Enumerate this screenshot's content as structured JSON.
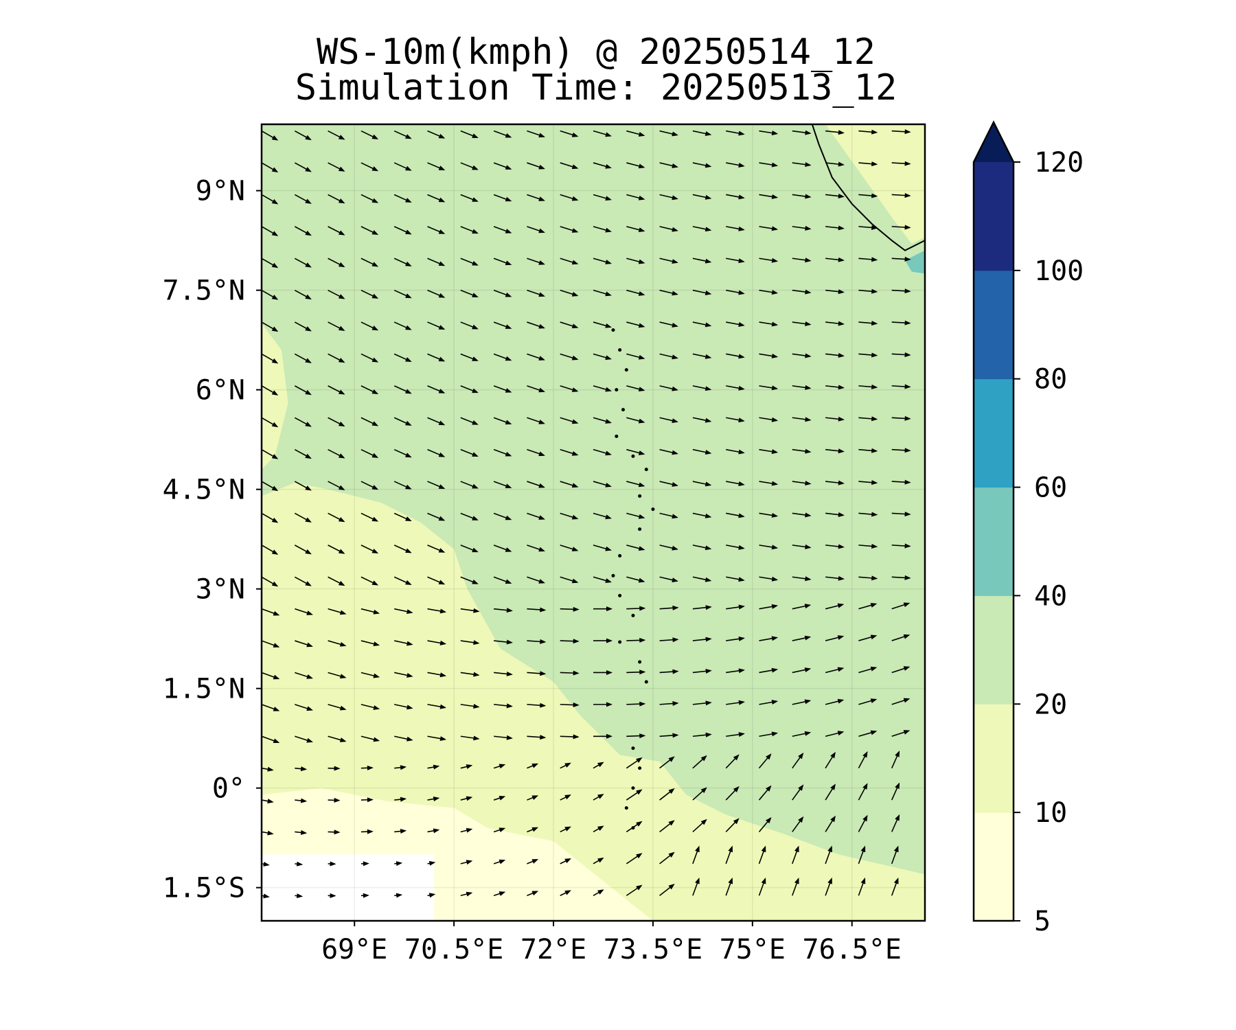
{
  "title": {
    "line1": "WS-10m(kmph) @ 20250514_12",
    "line2": "Simulation Time: 20250513_12"
  },
  "chart_data": {
    "type": "heatmap",
    "variable": "WS-10m(kmph)",
    "valid_time": "20250514_12",
    "simulation_time": "20250513_12",
    "xlim": [
      67.6,
      77.6
    ],
    "ylim": [
      -2.0,
      10.0
    ],
    "x_ticks": [
      {
        "value": 69.0,
        "label": "69°E"
      },
      {
        "value": 70.5,
        "label": "70.5°E"
      },
      {
        "value": 72.0,
        "label": "72°E"
      },
      {
        "value": 73.5,
        "label": "73.5°E"
      },
      {
        "value": 75.0,
        "label": "75°E"
      },
      {
        "value": 76.5,
        "label": "76.5°E"
      }
    ],
    "y_ticks": [
      {
        "value": 9.0,
        "label": "9°N"
      },
      {
        "value": 7.5,
        "label": "7.5°N"
      },
      {
        "value": 6.0,
        "label": "6°N"
      },
      {
        "value": 4.5,
        "label": "4.5°N"
      },
      {
        "value": 3.0,
        "label": "3°N"
      },
      {
        "value": 1.5,
        "label": "1.5°N"
      },
      {
        "value": 0.0,
        "label": "0°"
      },
      {
        "value": -1.5,
        "label": "1.5°S"
      }
    ],
    "grid": true,
    "colorbar": {
      "placement": "right",
      "extend": "max",
      "levels": [
        5,
        10,
        20,
        40,
        60,
        80,
        100,
        120
      ],
      "tick_labels": [
        "5",
        "10",
        "20",
        "40",
        "60",
        "80",
        "100",
        "120"
      ],
      "colors": [
        "#ffffd9",
        "#eef8b8",
        "#c9e9b5",
        "#78c8bc",
        "#2fa2c3",
        "#2363a9",
        "#1c2b7e"
      ],
      "extend_color": "#081d58"
    },
    "regions": [
      {
        "range": "5-10",
        "description": "southwest corner near 1.5°S, west of 71°E"
      },
      {
        "range": "10-20",
        "description": "western and southern part of domain"
      },
      {
        "range": "20-40",
        "description": "most of domain, north and east"
      },
      {
        "range": "40-60",
        "description": "small patch near 8°N, 77.5°E"
      }
    ],
    "wind_field": {
      "type": "quiver",
      "pattern": "northwesterly in the north, westerly in the center-east, southwesterly/southerly in the southeast, weak in the southwest"
    },
    "land_features": [
      "Maldives atoll chain (dotted outline) along ~73°E to 73.5°E from about -0.8°N to 7°N",
      "Southern tip of India coastline in the top-right corner"
    ]
  }
}
